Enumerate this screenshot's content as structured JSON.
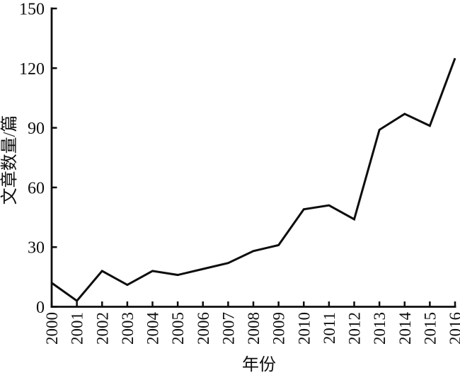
{
  "chart_data": {
    "type": "line",
    "title": "",
    "xlabel": "年份",
    "ylabel": "文章数量/篇",
    "x": [
      2000,
      2001,
      2002,
      2003,
      2004,
      2005,
      2006,
      2007,
      2008,
      2009,
      2010,
      2011,
      2012,
      2013,
      2014,
      2015,
      2016
    ],
    "series": [
      {
        "name": "文章数量",
        "values": [
          12,
          3,
          18,
          11,
          18,
          16,
          19,
          22,
          28,
          31,
          49,
          51,
          44,
          89,
          97,
          91,
          125
        ]
      }
    ],
    "ylim": [
      0,
      150
    ],
    "yticks": [
      0,
      30,
      60,
      90,
      120,
      150
    ],
    "grid": false,
    "legend_position": "none",
    "line_color": "#0d0d0d",
    "axis_color": "#0d0d0d",
    "line_width": 3
  }
}
